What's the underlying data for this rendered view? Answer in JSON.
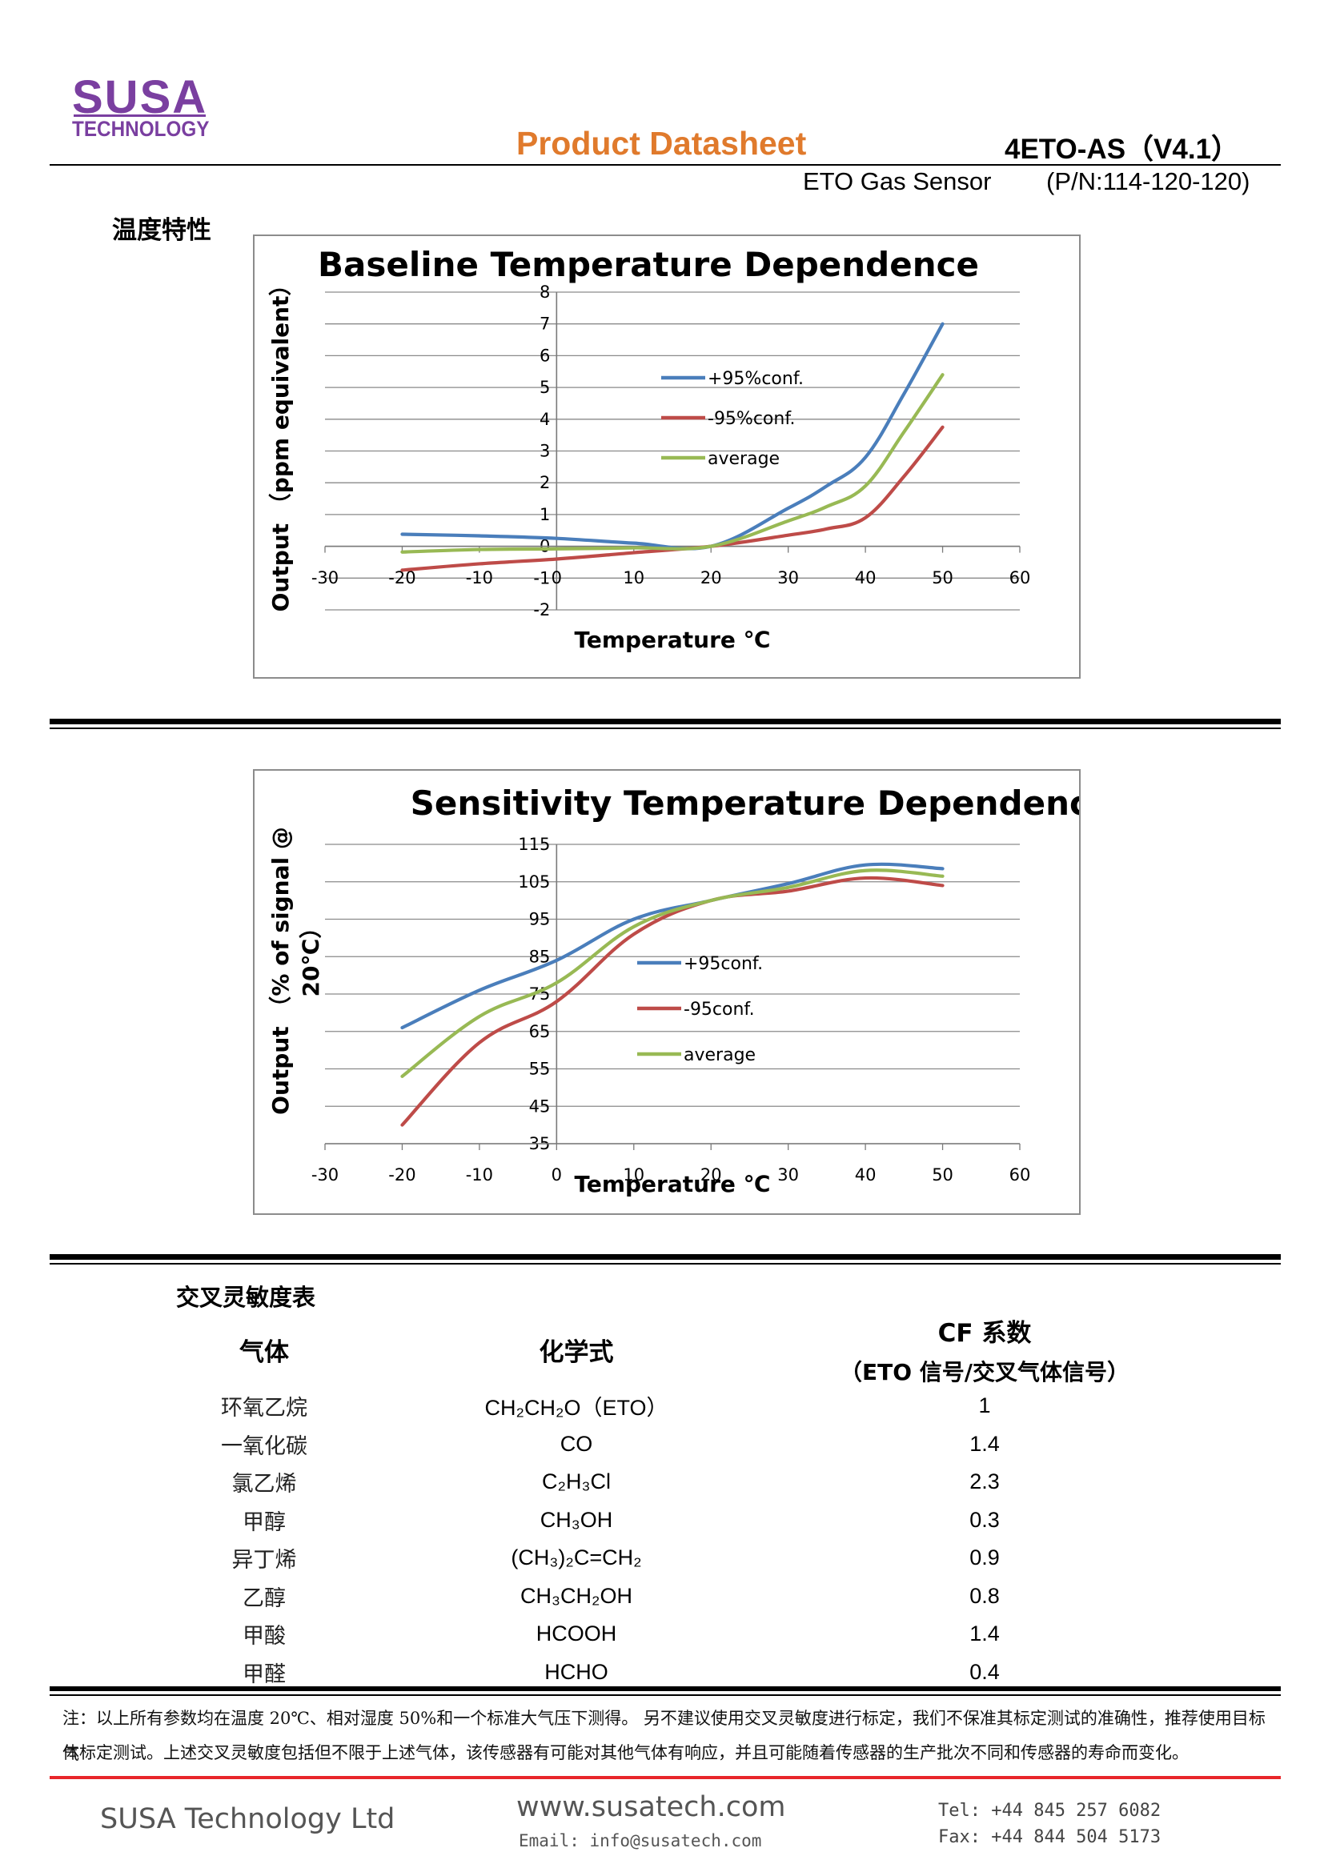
{
  "header": {
    "logo_line1": "SUSA",
    "logo_line2": "TECHNOLOGY",
    "doc_title": "Product Datasheet",
    "model": "4ETO-AS（V4.1）",
    "sensor_name": "ETO Gas Sensor",
    "part_number": "(P/N:114-120-120)"
  },
  "section_temperature": {
    "heading": "温度特性"
  },
  "colors": {
    "plus95": "#4a7ebb",
    "minus95": "#be4b48",
    "average": "#98b954",
    "logo": "#7a3fa0",
    "title": "#e07a2c",
    "footer_rule": "#e8262a"
  },
  "chart_data": [
    {
      "type": "line",
      "title": "Baseline Temperature Dependence",
      "xlabel": "Temperature ℃",
      "ylabel": "Output （ppm equivalent）",
      "xlim": [
        -30,
        60
      ],
      "ylim": [
        -2,
        8
      ],
      "x_ticks": [
        -30,
        -20,
        -10,
        0,
        10,
        20,
        30,
        40,
        50,
        60
      ],
      "y_ticks": [
        -2,
        -1,
        0,
        1,
        2,
        3,
        4,
        5,
        6,
        7,
        8
      ],
      "grid": true,
      "legend_position": "center",
      "x": [
        -20,
        -10,
        0,
        10,
        20,
        30,
        35,
        40,
        45,
        50
      ],
      "series": [
        {
          "name": "+95%conf.",
          "color": "#4a7ebb",
          "values": [
            0.38,
            0.33,
            0.25,
            0.1,
            0.0,
            1.2,
            1.9,
            2.8,
            4.8,
            7.0
          ]
        },
        {
          "name": "-95%conf.",
          "color": "#be4b48",
          "values": [
            -0.75,
            -0.55,
            -0.4,
            -0.2,
            0.0,
            0.35,
            0.55,
            0.9,
            2.2,
            3.75
          ]
        },
        {
          "name": "average",
          "color": "#98b954",
          "values": [
            -0.18,
            -0.1,
            -0.08,
            -0.05,
            0.0,
            0.8,
            1.25,
            1.9,
            3.6,
            5.4
          ]
        }
      ]
    },
    {
      "type": "line",
      "title": "Sensitivity Temperature Dependence",
      "xlabel": "Temperature ℃",
      "ylabel": "Output （% of signal @ 20℃）",
      "ylabel_line1": "Output （% of signal @",
      "ylabel_line2": "20℃）",
      "xlim": [
        -30,
        60
      ],
      "ylim": [
        35,
        115
      ],
      "x_ticks": [
        -30,
        -20,
        -10,
        0,
        10,
        20,
        30,
        40,
        50,
        60
      ],
      "y_ticks": [
        35,
        45,
        55,
        65,
        75,
        85,
        95,
        105,
        115
      ],
      "grid": true,
      "legend_position": "center-right",
      "x": [
        -20,
        -10,
        0,
        10,
        20,
        30,
        40,
        50
      ],
      "series": [
        {
          "name": "+95conf.",
          "color": "#4a7ebb",
          "values": [
            66,
            76,
            84,
            95,
            100,
            104.5,
            109.5,
            108.5
          ]
        },
        {
          "name": "-95conf.",
          "color": "#be4b48",
          "values": [
            40,
            62,
            73,
            91,
            100,
            102.5,
            106,
            104
          ]
        },
        {
          "name": "average",
          "color": "#98b954",
          "values": [
            53,
            69,
            78,
            93,
            100,
            103.5,
            108,
            106.5
          ]
        }
      ]
    }
  ],
  "cross_sensitivity": {
    "heading": "交叉灵敏度表",
    "col_gas": "气体",
    "col_formula": "化学式",
    "col_cf_line1": "CF 系数",
    "col_cf_line2": "（ETO 信号/交叉气体信号）",
    "rows": [
      {
        "gas": "环氧乙烷",
        "formula": "CH₂CH₂O（ETO）",
        "cf": "1"
      },
      {
        "gas": "一氧化碳",
        "formula": "CO",
        "cf": "1.4"
      },
      {
        "gas": "氯乙烯",
        "formula": "C₂H₃Cl",
        "cf": "2.3"
      },
      {
        "gas": "甲醇",
        "formula": "CH₃OH",
        "cf": "0.3"
      },
      {
        "gas": "异丁烯",
        "formula": "(CH₃)₂C=CH₂",
        "cf": "0.9"
      },
      {
        "gas": "乙醇",
        "formula": "CH₃CH₂OH",
        "cf": "0.8"
      },
      {
        "gas": "甲酸",
        "formula": "HCOOH",
        "cf": "1.4"
      },
      {
        "gas": "甲醛",
        "formula": "HCHO",
        "cf": "0.4"
      }
    ]
  },
  "note": {
    "line1": "注：以上所有参数均在温度 20℃、相对湿度 50%和一个标准大气压下测得。 另不建议使用交叉灵敏度进行标定，我们不保准其标定测试的准确性，推荐使用目标气",
    "line2": "体标定测试。上述交叉灵敏度包括但不限于上述气体，该传感器有可能对其他气体有响应，并且可能随着传感器的生产批次不同和传感器的寿命而变化。"
  },
  "footer": {
    "company": "SUSA Technology Ltd",
    "website": "www.susatech.com",
    "email": "Email: info@susatech.com",
    "tel": "Tel: +44 845 257 6082",
    "fax": "Fax: +44 844 504 5173"
  }
}
